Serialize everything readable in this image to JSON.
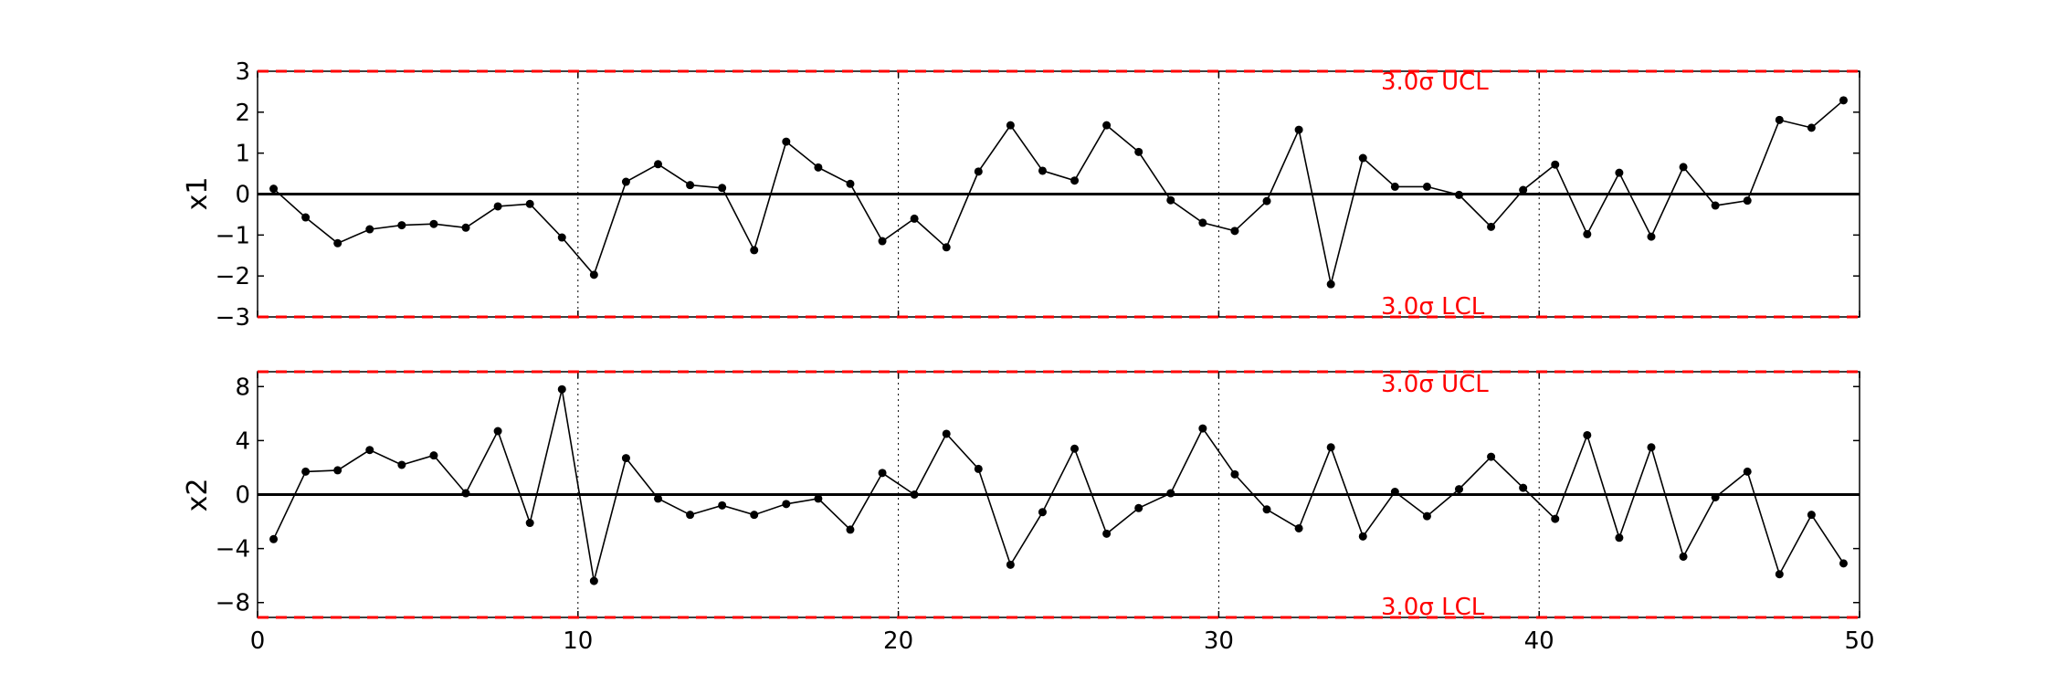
{
  "chart_data": [
    {
      "type": "line",
      "ylabel": "x1",
      "xlim": [
        0,
        50
      ],
      "ylim": [
        -3,
        3
      ],
      "yticks": [
        -3,
        -2,
        -1,
        0,
        1,
        2,
        3
      ],
      "ytick_labels": [
        "−3",
        "−2",
        "−1",
        "0",
        "1",
        "2",
        "3"
      ],
      "ucl": 3.0,
      "lcl": -3.0,
      "center": 0,
      "ucl_label": "3.0σ UCL",
      "lcl_label": "3.0σ LCL",
      "x": [
        0.5,
        1.5,
        2.5,
        3.5,
        4.5,
        5.5,
        6.5,
        7.5,
        8.5,
        9.5,
        10.5,
        11.5,
        12.5,
        13.5,
        14.5,
        15.5,
        16.5,
        17.5,
        18.5,
        19.5,
        20.5,
        21.5,
        22.5,
        23.5,
        24.5,
        25.5,
        26.5,
        27.5,
        28.5,
        29.5,
        30.5,
        31.5,
        32.5,
        33.5,
        34.5,
        35.5,
        36.5,
        37.5,
        38.5,
        39.5,
        40.5,
        41.5,
        42.5,
        43.5,
        44.5,
        45.5,
        46.5,
        47.5,
        48.5,
        49.5
      ],
      "values": [
        0.13,
        -0.57,
        -1.2,
        -0.86,
        -0.76,
        -0.73,
        -0.82,
        -0.3,
        -0.24,
        -1.06,
        -1.97,
        0.3,
        0.73,
        0.22,
        0.15,
        -1.37,
        1.28,
        0.65,
        0.25,
        -1.15,
        -0.6,
        -1.3,
        0.55,
        1.68,
        0.57,
        0.33,
        1.68,
        1.03,
        -0.15,
        -0.7,
        -0.9,
        -0.17,
        1.57,
        -2.2,
        0.88,
        0.18,
        0.18,
        -0.02,
        -0.8,
        0.1,
        0.72,
        -0.98,
        0.52,
        -1.04,
        0.66,
        -0.28,
        -0.16,
        1.81,
        1.62,
        2.29
      ]
    },
    {
      "type": "line",
      "ylabel": "x2",
      "xlim": [
        0,
        50
      ],
      "ylim": [
        -9.1,
        9.1
      ],
      "yticks": [
        -8,
        -4,
        0,
        4,
        8
      ],
      "ytick_labels": [
        "−8",
        "−4",
        "0",
        "4",
        "8"
      ],
      "xticks": [
        0,
        10,
        20,
        30,
        40,
        50
      ],
      "xtick_labels": [
        "0",
        "10",
        "20",
        "30",
        "40",
        "50"
      ],
      "ucl": 9.1,
      "lcl": -9.1,
      "center": 0,
      "ucl_label": "3.0σ UCL",
      "lcl_label": "3.0σ LCL",
      "x": [
        0.5,
        1.5,
        2.5,
        3.5,
        4.5,
        5.5,
        6.5,
        7.5,
        8.5,
        9.5,
        10.5,
        11.5,
        12.5,
        13.5,
        14.5,
        15.5,
        16.5,
        17.5,
        18.5,
        19.5,
        20.5,
        21.5,
        22.5,
        23.5,
        24.5,
        25.5,
        26.5,
        27.5,
        28.5,
        29.5,
        30.5,
        31.5,
        32.5,
        33.5,
        34.5,
        35.5,
        36.5,
        37.5,
        38.5,
        39.5,
        40.5,
        41.5,
        42.5,
        43.5,
        44.5,
        45.5,
        46.5,
        47.5,
        48.5,
        49.5
      ],
      "values": [
        -3.3,
        1.7,
        1.8,
        3.3,
        2.2,
        2.9,
        0.1,
        4.7,
        -2.1,
        7.8,
        -6.4,
        2.7,
        -0.3,
        -1.5,
        -0.8,
        -1.5,
        -0.7,
        -0.3,
        -2.6,
        1.6,
        0.0,
        4.5,
        1.9,
        -5.2,
        -1.3,
        3.4,
        -2.9,
        -1.0,
        0.1,
        4.9,
        1.5,
        -1.1,
        -2.5,
        3.5,
        -3.1,
        0.2,
        -1.6,
        0.4,
        2.8,
        0.5,
        -1.8,
        4.4,
        -3.2,
        3.5,
        -4.6,
        -0.2,
        1.7,
        -5.9,
        -1.5,
        -5.1
      ]
    }
  ]
}
